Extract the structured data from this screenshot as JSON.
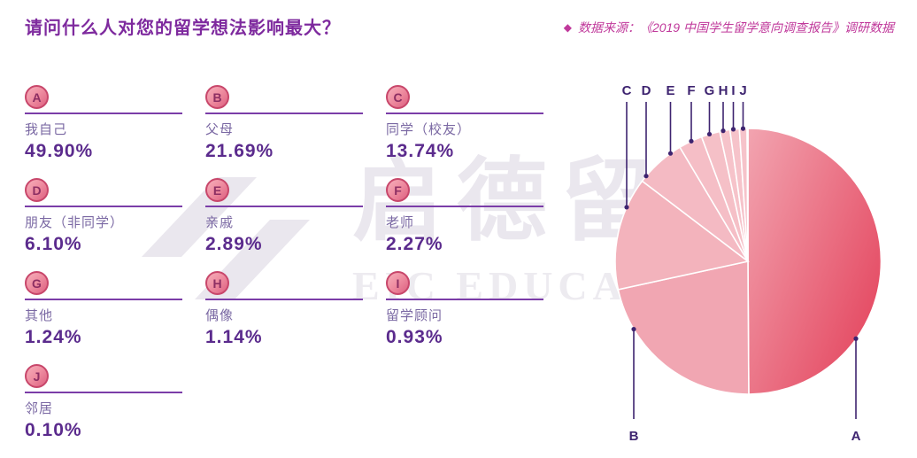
{
  "header": {
    "title": "请问什么人对您的留学想法影响最大？",
    "source_prefix": "◆",
    "source": "数据来源：《2019 中国学生留学意向调查报告》调研数据"
  },
  "watermark": {
    "cn": "启德留学",
    "en": "EIC EDUCATION"
  },
  "chart_data": {
    "type": "pie",
    "title": "请问什么人对您的留学想法影响最大？",
    "unit": "%",
    "total": 100,
    "slices": [
      {
        "key": "A",
        "label": "我自己",
        "value": 49.9,
        "display": "49.90%"
      },
      {
        "key": "B",
        "label": "父母",
        "value": 21.69,
        "display": "21.69%"
      },
      {
        "key": "C",
        "label": "同学（校友）",
        "value": 13.74,
        "display": "13.74%"
      },
      {
        "key": "D",
        "label": "朋友（非同学）",
        "value": 6.1,
        "display": "6.10%"
      },
      {
        "key": "E",
        "label": "亲戚",
        "value": 2.89,
        "display": "2.89%"
      },
      {
        "key": "F",
        "label": "老师",
        "value": 2.27,
        "display": "2.27%"
      },
      {
        "key": "G",
        "label": "其他",
        "value": 1.24,
        "display": "1.24%"
      },
      {
        "key": "H",
        "label": "偶像",
        "value": 1.14,
        "display": "1.14%"
      },
      {
        "key": "I",
        "label": "留学顾问",
        "value": 0.93,
        "display": "0.93%"
      },
      {
        "key": "J",
        "label": "邻居",
        "value": 0.1,
        "display": "0.10%"
      }
    ],
    "label_layout": {
      "top_callouts": [
        "C",
        "D",
        "E",
        "F",
        "G",
        "H",
        "I",
        "J"
      ],
      "bottom_callouts": [
        "B",
        "A"
      ]
    },
    "colors": {
      "title_magenta": "#7e2a9e",
      "source_pink": "#c0399b",
      "legend_label_purple": "#7a68a3",
      "percent_purple": "#5b2b8d",
      "divider_purple": "#7b3da8",
      "callout_purple": "#3e2470",
      "badge_border": "#c8476b",
      "badge_letter": "#8d2f63",
      "pie_gradient_start": "#f2a4b0",
      "pie_gradient_end": "#e4465f",
      "slice_fills": [
        "#e85a70",
        "#f1a6b2",
        "#f3b3bc",
        "#f4bac3",
        "#f5bec6",
        "#f5c0c7",
        "#f6c3ca",
        "#f6c3ca",
        "#f6c3ca",
        "#f6c3ca"
      ]
    }
  }
}
